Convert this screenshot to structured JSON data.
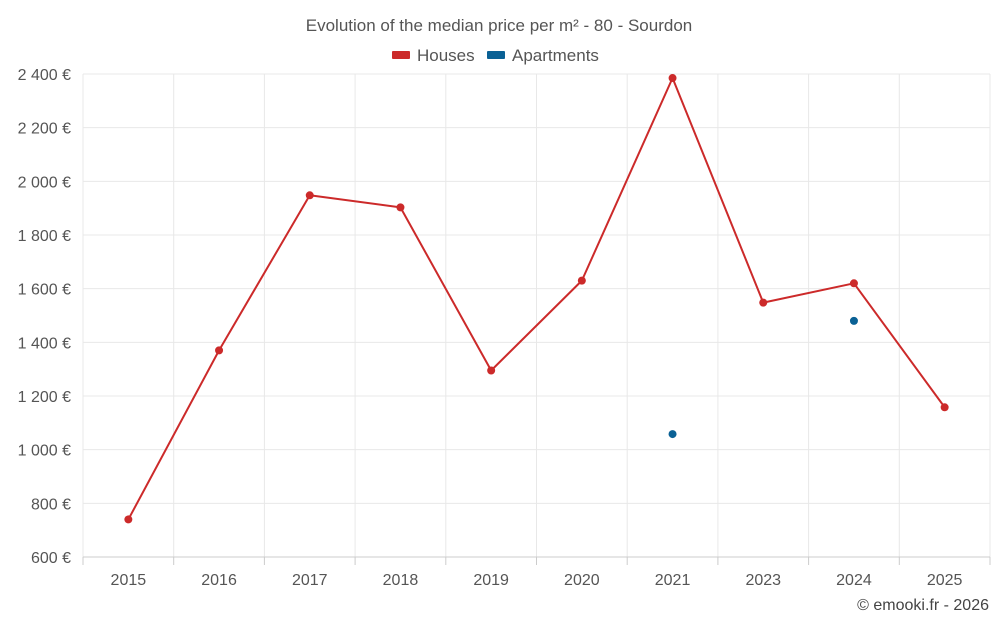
{
  "chart_data": {
    "type": "line",
    "title": "Evolution of the median price per m² - 80 - Sourdon",
    "categories": [
      "2015",
      "2016",
      "2017",
      "2018",
      "2019",
      "2020",
      "2021",
      "2023",
      "2024",
      "2025"
    ],
    "series": [
      {
        "name": "Houses",
        "color": "#cc2a2a",
        "values": [
          740,
          1370,
          1948,
          1903,
          1295,
          1630,
          2385,
          1548,
          1620,
          1158
        ]
      },
      {
        "name": "Apartments",
        "color": "#0a6195",
        "values": [
          null,
          null,
          null,
          null,
          null,
          null,
          1058,
          null,
          1480,
          null
        ]
      }
    ],
    "ylim": [
      600,
      2400
    ],
    "yticks": [
      600,
      800,
      1000,
      1200,
      1400,
      1600,
      1800,
      2000,
      2200,
      2400
    ],
    "ytick_labels": [
      "600 €",
      "800 €",
      "1 000 €",
      "1 200 €",
      "1 400 €",
      "1 600 €",
      "1 800 €",
      "2 000 €",
      "2 200 €",
      "2 400 €"
    ],
    "xlabel": "",
    "ylabel": "",
    "grid": true,
    "legend_position": "top-center"
  },
  "credit": "© emooki.fr - 2026"
}
